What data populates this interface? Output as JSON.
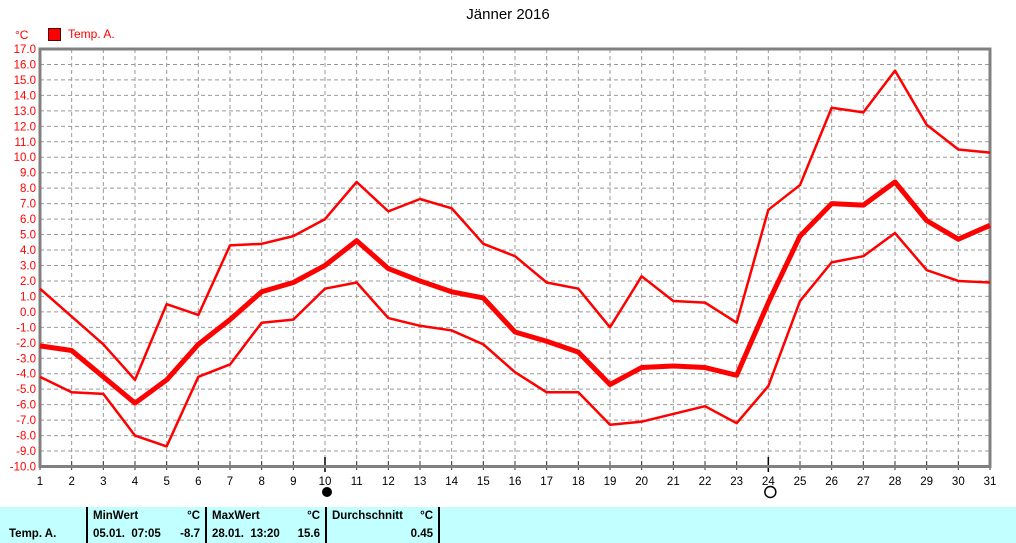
{
  "title": "Jänner 2016",
  "legend": {
    "label": "Temp. A.",
    "swatch_color": "#ff0000"
  },
  "axis_unit": "°C",
  "colors": {
    "accent": "#ff0000",
    "grid": "#999999",
    "axis": "#808080",
    "tick": "#333333",
    "table_bg": "#c2ffff"
  },
  "chart_data": {
    "type": "line",
    "title": "Jänner 2016",
    "xlabel": "",
    "ylabel": "°C",
    "xlim": [
      1,
      31
    ],
    "ylim": [
      -10,
      17
    ],
    "y_tick_step": 1.0,
    "y_tick_format": "0.0",
    "grid": true,
    "legend_position": "top-left",
    "x": [
      1,
      2,
      3,
      4,
      5,
      6,
      7,
      8,
      9,
      10,
      11,
      12,
      13,
      14,
      15,
      16,
      17,
      18,
      19,
      20,
      21,
      22,
      23,
      24,
      25,
      26,
      27,
      28,
      29,
      30,
      31
    ],
    "series": [
      {
        "name": "max",
        "color": "#ff0000",
        "width": 2.5,
        "values": [
          1.5,
          -0.3,
          -2.1,
          -4.4,
          0.5,
          -0.2,
          4.3,
          4.4,
          4.9,
          6.0,
          8.4,
          6.5,
          7.3,
          6.7,
          4.4,
          3.6,
          1.9,
          1.5,
          -1.0,
          2.3,
          0.7,
          0.6,
          -0.7,
          6.6,
          8.2,
          13.2,
          12.9,
          15.6,
          12.1,
          10.5,
          10.3
        ]
      },
      {
        "name": "mean",
        "color": "#ff0000",
        "width": 5,
        "values": [
          -2.2,
          -2.5,
          -4.2,
          -5.9,
          -4.4,
          -2.1,
          -0.5,
          1.3,
          1.9,
          3.0,
          4.6,
          2.8,
          2.0,
          1.3,
          0.9,
          -1.3,
          -1.9,
          -2.6,
          -4.7,
          -3.6,
          -3.5,
          -3.6,
          -4.1,
          0.6,
          4.9,
          7.0,
          6.9,
          8.4,
          5.9,
          4.7,
          5.6
        ]
      },
      {
        "name": "min",
        "color": "#ff0000",
        "width": 2.5,
        "values": [
          -4.2,
          -5.2,
          -5.3,
          -8.0,
          -8.7,
          -4.2,
          -3.4,
          -0.7,
          -0.5,
          1.5,
          1.9,
          -0.4,
          -0.9,
          -1.2,
          -2.1,
          -3.9,
          -5.2,
          -5.2,
          -7.3,
          -7.1,
          -6.6,
          -6.1,
          -7.2,
          -4.8,
          0.7,
          3.2,
          3.6,
          5.1,
          2.7,
          2.0,
          1.9
        ]
      }
    ],
    "markers": [
      {
        "day": 10,
        "symbol": "new-moon-icon"
      },
      {
        "day": 24,
        "symbol": "full-moon-icon"
      }
    ]
  },
  "table": {
    "row_label": "Temp. A.",
    "columns": [
      {
        "header": "MinWert",
        "unit": "°C",
        "value": "05.01.  07:05",
        "number": "-8.7"
      },
      {
        "header": "MaxWert",
        "unit": "°C",
        "value": "28.01.  13:20",
        "number": "15.6"
      },
      {
        "header": "Durchschnitt",
        "unit": "°C",
        "value": "",
        "number": "0.45"
      }
    ]
  }
}
